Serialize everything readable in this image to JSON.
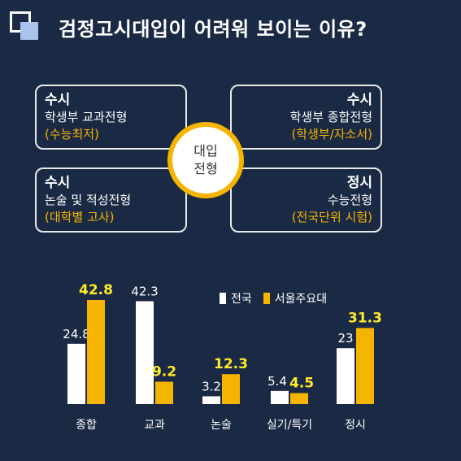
{
  "title": "검정고시대입이 어려워 보이는 이유?",
  "boxes": {
    "tl": {
      "head": "수시",
      "line1": "학생부 교과전형",
      "line2": "(수능최저)"
    },
    "tr": {
      "head": "수시",
      "line1": "학생부 종합전형",
      "line2": "(학생부/자소서)"
    },
    "bl": {
      "head": "수시",
      "line1": "논술 및 적성전형",
      "line2": "(대학별 고사)"
    },
    "br": {
      "head": "정시",
      "line1": "수능전형",
      "line2": "(전국단위 시험)"
    }
  },
  "center": {
    "line1": "대입",
    "line2": "전형"
  },
  "colors": {
    "background": "#1b2a44",
    "series1": "#ffffff",
    "series2": "#f5b400",
    "value_label2": "#ffe92b"
  },
  "chart_data": {
    "type": "bar",
    "categories": [
      "종합",
      "교과",
      "논술",
      "실기/특기",
      "정시"
    ],
    "series": [
      {
        "name": "전국",
        "values": [
          24.8,
          42.3,
          3.2,
          5.4,
          23
        ]
      },
      {
        "name": "서울주요대",
        "values": [
          42.8,
          9.2,
          12.3,
          4.5,
          31.3
        ]
      }
    ],
    "value_labels": [
      [
        "24.8",
        "42.3",
        "3.2",
        "5.4",
        "23"
      ],
      [
        "42.8",
        "9.2",
        "12.3",
        "4.5",
        "31.3"
      ]
    ],
    "legend_position": "top-right",
    "grid": false
  }
}
